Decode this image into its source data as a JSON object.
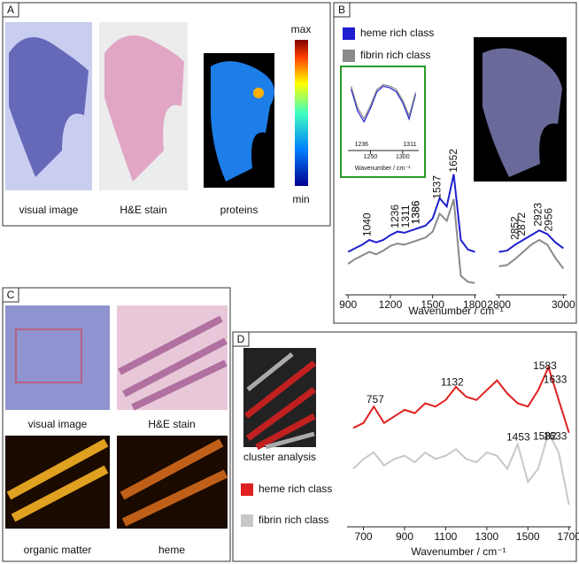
{
  "panels": {
    "A": {
      "label": "A",
      "captions": [
        "visual image",
        "H&E stain",
        "proteins"
      ],
      "colorbar": {
        "max": "max",
        "min": "min"
      }
    },
    "B": {
      "label": "B"
    },
    "C": {
      "label": "C",
      "captions": [
        "visual image",
        "H&E stain",
        "organic matter",
        "heme"
      ]
    },
    "D": {
      "label": "D",
      "caption": "cluster analysis"
    }
  },
  "chart_data": [
    {
      "type": "line",
      "xlim": [
        880,
        1810
      ],
      "xticks": [
        900,
        1200,
        1500,
        1800
      ],
      "ylim": [
        0,
        1
      ],
      "x": [
        900,
        950,
        1000,
        1050,
        1100,
        1150,
        1200,
        1250,
        1300,
        1350,
        1400,
        1450,
        1500,
        1550,
        1600,
        1650,
        1700,
        1750,
        1800
      ],
      "series": [
        {
          "name": "heme rich class",
          "color": "#1f1fcf",
          "values": [
            0.3,
            0.33,
            0.36,
            0.4,
            0.38,
            0.4,
            0.44,
            0.47,
            0.46,
            0.48,
            0.5,
            0.52,
            0.58,
            0.75,
            0.68,
            0.95,
            0.4,
            0.32,
            0.3
          ],
          "peaks": [
            1040,
            1236,
            1311,
            1386,
            1386,
            1537,
            1652
          ]
        },
        {
          "name": "fibrin rich class",
          "color": "#8a8a8a",
          "values": [
            0.2,
            0.24,
            0.27,
            0.3,
            0.28,
            0.31,
            0.35,
            0.37,
            0.36,
            0.38,
            0.4,
            0.42,
            0.47,
            0.62,
            0.56,
            0.74,
            0.1,
            0.05,
            0.04
          ]
        }
      ]
    },
    {
      "type": "line",
      "xlim": [
        2790,
        3010
      ],
      "xticks": [
        2800,
        3000
      ],
      "ylim": [
        0,
        1
      ],
      "xlabel": "Wavenumber / cm⁻¹",
      "x": [
        2800,
        2825,
        2850,
        2875,
        2900,
        2925,
        2950,
        2975,
        3000
      ],
      "series": [
        {
          "color": "#1f1fcf",
          "values": [
            0.3,
            0.31,
            0.36,
            0.4,
            0.44,
            0.48,
            0.45,
            0.38,
            0.33
          ],
          "peaks": [
            2852,
            2872,
            2923,
            2956
          ]
        },
        {
          "color": "#8a8a8a",
          "values": [
            0.18,
            0.19,
            0.24,
            0.3,
            0.36,
            0.4,
            0.36,
            0.25,
            0.16
          ]
        }
      ]
    },
    {
      "type": "line",
      "xlim": [
        1215,
        1325
      ],
      "xticks": [
        1250,
        1300
      ],
      "ylim": [
        0,
        1
      ],
      "xlabel": "Wavenumber / cm⁻¹",
      "x": [
        1220,
        1230,
        1240,
        1250,
        1260,
        1270,
        1280,
        1290,
        1300,
        1310,
        1320
      ],
      "series": [
        {
          "color": "#1f1fcf",
          "values": [
            0.8,
            0.4,
            0.2,
            0.45,
            0.75,
            0.85,
            0.82,
            0.75,
            0.55,
            0.25,
            0.7
          ],
          "peaks": [
            1236,
            1311
          ]
        },
        {
          "color": "#8a8a8a",
          "values": [
            0.85,
            0.46,
            0.26,
            0.5,
            0.79,
            0.88,
            0.85,
            0.79,
            0.6,
            0.31,
            0.74
          ]
        }
      ]
    },
    {
      "type": "line",
      "xlim": [
        620,
        1710
      ],
      "xticks": [
        700,
        900,
        1100,
        1300,
        1500,
        1700
      ],
      "ylim": [
        0,
        1
      ],
      "xlabel": "Wavenumber / cm⁻¹",
      "x": [
        650,
        700,
        750,
        800,
        850,
        900,
        950,
        1000,
        1050,
        1100,
        1150,
        1200,
        1250,
        1300,
        1350,
        1400,
        1450,
        1500,
        1550,
        1600,
        1650,
        1700
      ],
      "series": [
        {
          "name": "heme rich class",
          "color": "#e02020",
          "values": [
            0.55,
            0.58,
            0.68,
            0.58,
            0.62,
            0.66,
            0.64,
            0.7,
            0.68,
            0.72,
            0.8,
            0.74,
            0.72,
            0.78,
            0.84,
            0.76,
            0.7,
            0.68,
            0.78,
            0.92,
            0.72,
            0.52
          ],
          "peaks": [
            757,
            1132,
            1583,
            1633
          ]
        },
        {
          "name": "fibrin rich class",
          "color": "#c8c8c8",
          "values": [
            0.3,
            0.36,
            0.4,
            0.32,
            0.36,
            0.38,
            0.34,
            0.4,
            0.36,
            0.38,
            0.42,
            0.36,
            0.34,
            0.4,
            0.38,
            0.3,
            0.45,
            0.22,
            0.3,
            0.52,
            0.4,
            0.08
          ],
          "peaks": [
            1453,
            1582,
            1633
          ]
        }
      ]
    }
  ]
}
